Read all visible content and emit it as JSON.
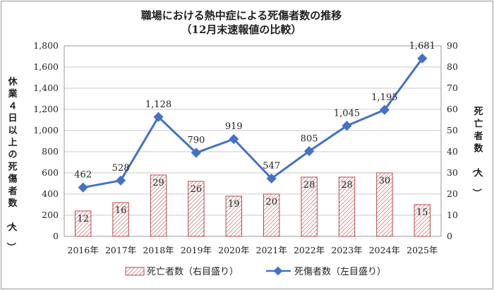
{
  "chart_data": {
    "type": "bar+line",
    "title": "職場における熱中症による死傷者数の推移",
    "subtitle": "（12月末速報値の比較）",
    "categories": [
      "2016年",
      "2017年",
      "2018年",
      "2019年",
      "2020年",
      "2021年",
      "2022年",
      "2023年",
      "2024年",
      "2025年"
    ],
    "series": [
      {
        "name": "死亡者数（右目盛り）",
        "type": "bar",
        "axis": "right",
        "values": [
          12,
          16,
          29,
          26,
          19,
          20,
          28,
          28,
          30,
          15
        ],
        "color": "#b8484b"
      },
      {
        "name": "死傷者数（左目盛り）",
        "type": "line",
        "axis": "left",
        "values": [
          462,
          528,
          1128,
          790,
          919,
          547,
          805,
          1045,
          1195,
          1681
        ],
        "color": "#4472c4"
      }
    ],
    "left_axis": {
      "label": "休業４日以上の死傷者数（人）",
      "range": [
        0,
        1800
      ],
      "ticks": [
        "0",
        "200",
        "400",
        "600",
        "800",
        "1,000",
        "1,200",
        "1,400",
        "1,600",
        "1,800"
      ]
    },
    "right_axis": {
      "label": "死亡者数（人）",
      "range": [
        0,
        90
      ],
      "ticks": [
        "0",
        "10",
        "20",
        "30",
        "40",
        "50",
        "60",
        "70",
        "80",
        "90"
      ]
    },
    "line_labels": [
      "462",
      "528",
      "1,128",
      "790",
      "919",
      "547",
      "805",
      "1,045",
      "1,195",
      "1,681"
    ],
    "bar_labels": [
      "12",
      "16",
      "29",
      "26",
      "19",
      "20",
      "28",
      "28",
      "30",
      "15"
    ],
    "grid": true,
    "legend_position": "bottom"
  }
}
